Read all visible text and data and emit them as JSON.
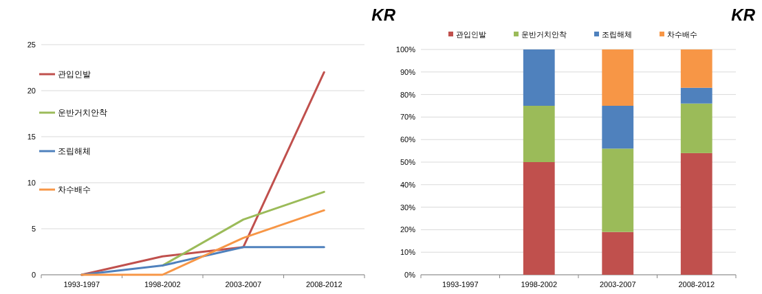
{
  "chart_data": [
    {
      "type": "line",
      "title": "KR",
      "categories": [
        "1993-1997",
        "1998-2002",
        "2003-2007",
        "2008-2012"
      ],
      "series": [
        {
          "name": "관입인발",
          "color": "#c0504d",
          "values": [
            0,
            2,
            3,
            22
          ]
        },
        {
          "name": "운반거치안착",
          "color": "#9bbb59",
          "values": [
            null,
            1,
            6,
            9
          ]
        },
        {
          "name": "조립해체",
          "color": "#4f81bd",
          "values": [
            0,
            1,
            3,
            3
          ]
        },
        {
          "name": "차수배수",
          "color": "#f79646",
          "values": [
            0,
            0,
            4,
            7
          ]
        }
      ],
      "ylim": [
        0,
        25
      ],
      "yticks": [
        0,
        5,
        10,
        15,
        20,
        25
      ],
      "grid": "y",
      "legend": "left",
      "marker": "none",
      "line_style": "solid"
    },
    {
      "type": "bar",
      "stacked": true,
      "title": "KR",
      "categories": [
        "1993-1997",
        "1998-2002",
        "2003-2007",
        "2008-2012"
      ],
      "series": [
        {
          "name": "관입인발",
          "color": "#c0504d",
          "values": [
            0,
            50,
            19,
            54
          ]
        },
        {
          "name": "운반거치안착",
          "color": "#9bbb59",
          "values": [
            0,
            25,
            37,
            22
          ]
        },
        {
          "name": "조립해체",
          "color": "#4f81bd",
          "values": [
            0,
            25,
            19,
            7
          ]
        },
        {
          "name": "차수배수",
          "color": "#f79646",
          "values": [
            0,
            0,
            25,
            17
          ]
        }
      ],
      "ylim": [
        0,
        100
      ],
      "yticks": [
        {
          "value": 0,
          "label": "0%"
        },
        {
          "value": 10,
          "label": "10%"
        },
        {
          "value": 20,
          "label": "20%"
        },
        {
          "value": 30,
          "label": "30%"
        },
        {
          "value": 40,
          "label": "40%"
        },
        {
          "value": 50,
          "label": "50%"
        },
        {
          "value": 60,
          "label": "60%"
        },
        {
          "value": 70,
          "label": "70%"
        },
        {
          "value": 80,
          "label": "80%"
        },
        {
          "value": 90,
          "label": "90%"
        },
        {
          "value": 100,
          "label": "100%"
        }
      ],
      "grid": "y",
      "legend": "top"
    }
  ]
}
